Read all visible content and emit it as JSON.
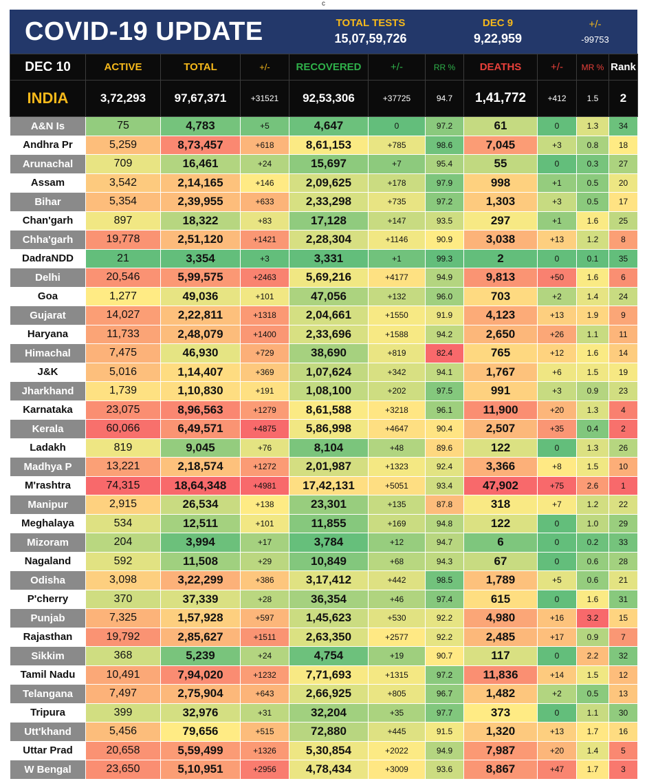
{
  "top_mark": "c",
  "banner": {
    "title": "COVID-19 UPDATE",
    "total_tests_label": "TOTAL TESTS",
    "total_tests_value": "15,07,59,726",
    "date_label": "DEC 9",
    "date_value": "9,22,959",
    "change_label": "+/-",
    "change_value": "-99753"
  },
  "header": {
    "date": "DEC 10",
    "active": "ACTIVE",
    "total": "TOTAL",
    "total_change": "+/-",
    "recovered": "RECOVERED",
    "recovered_change": "+/-",
    "rr": "RR %",
    "deaths": "DEATHS",
    "deaths_change": "+/-",
    "mr": "MR %",
    "rank": "Rank"
  },
  "india": {
    "name": "INDIA",
    "active": "3,72,293",
    "total": "97,67,371",
    "total_change": "+31521",
    "recovered": "92,53,306",
    "recovered_change": "+37725",
    "rr": "94.7",
    "deaths": "1,41,772",
    "deaths_change": "+412",
    "mr": "1.5",
    "rank": "2"
  },
  "colors": {
    "banner_bg": "#23386a",
    "accent_yellow": "#f6b91b",
    "recovered_green": "#2fb14a",
    "deaths_red": "#e8403a",
    "header_bg": "#0b0b0b",
    "state_grey": "#8a8a8a"
  },
  "states": [
    {
      "name": "A&N Is",
      "active": "75",
      "total": "4,783",
      "total_change": "+5",
      "recovered": "4,647",
      "recovered_change": "0",
      "rr": "97.2",
      "deaths": "61",
      "deaths_change": "0",
      "mr": "1.3",
      "rank": "34"
    },
    {
      "name": "Andhra Pr",
      "active": "5,259",
      "total": "8,73,457",
      "total_change": "+618",
      "recovered": "8,61,153",
      "recovered_change": "+785",
      "rr": "98.6",
      "deaths": "7,045",
      "deaths_change": "+3",
      "mr": "0.8",
      "rank": "18"
    },
    {
      "name": "Arunachal",
      "active": "709",
      "total": "16,461",
      "total_change": "+24",
      "recovered": "15,697",
      "recovered_change": "+7",
      "rr": "95.4",
      "deaths": "55",
      "deaths_change": "0",
      "mr": "0.3",
      "rank": "27"
    },
    {
      "name": "Assam",
      "active": "3,542",
      "total": "2,14,165",
      "total_change": "+146",
      "recovered": "2,09,625",
      "recovered_change": "+178",
      "rr": "97.9",
      "deaths": "998",
      "deaths_change": "+1",
      "mr": "0.5",
      "rank": "20"
    },
    {
      "name": "Bihar",
      "active": "5,354",
      "total": "2,39,955",
      "total_change": "+633",
      "recovered": "2,33,298",
      "recovered_change": "+735",
      "rr": "97.2",
      "deaths": "1,303",
      "deaths_change": "+3",
      "mr": "0.5",
      "rank": "17"
    },
    {
      "name": "Chan'garh",
      "active": "897",
      "total": "18,322",
      "total_change": "+83",
      "recovered": "17,128",
      "recovered_change": "+147",
      "rr": "93.5",
      "deaths": "297",
      "deaths_change": "+1",
      "mr": "1.6",
      "rank": "25"
    },
    {
      "name": "Chha'garh",
      "active": "19,778",
      "total": "2,51,120",
      "total_change": "+1421",
      "recovered": "2,28,304",
      "recovered_change": "+1146",
      "rr": "90.9",
      "deaths": "3,038",
      "deaths_change": "+13",
      "mr": "1.2",
      "rank": "8"
    },
    {
      "name": "DadraNDD",
      "active": "21",
      "total": "3,354",
      "total_change": "+3",
      "recovered": "3,331",
      "recovered_change": "+1",
      "rr": "99.3",
      "deaths": "2",
      "deaths_change": "0",
      "mr": "0.1",
      "rank": "35"
    },
    {
      "name": "Delhi",
      "active": "20,546",
      "total": "5,99,575",
      "total_change": "+2463",
      "recovered": "5,69,216",
      "recovered_change": "+4177",
      "rr": "94.9",
      "deaths": "9,813",
      "deaths_change": "+50",
      "mr": "1.6",
      "rank": "6"
    },
    {
      "name": "Goa",
      "active": "1,277",
      "total": "49,036",
      "total_change": "+101",
      "recovered": "47,056",
      "recovered_change": "+132",
      "rr": "96.0",
      "deaths": "703",
      "deaths_change": "+2",
      "mr": "1.4",
      "rank": "24"
    },
    {
      "name": "Gujarat",
      "active": "14,027",
      "total": "2,22,811",
      "total_change": "+1318",
      "recovered": "2,04,661",
      "recovered_change": "+1550",
      "rr": "91.9",
      "deaths": "4,123",
      "deaths_change": "+13",
      "mr": "1.9",
      "rank": "9"
    },
    {
      "name": "Haryana",
      "active": "11,733",
      "total": "2,48,079",
      "total_change": "+1400",
      "recovered": "2,33,696",
      "recovered_change": "+1588",
      "rr": "94.2",
      "deaths": "2,650",
      "deaths_change": "+26",
      "mr": "1.1",
      "rank": "11"
    },
    {
      "name": "Himachal",
      "active": "7,475",
      "total": "46,930",
      "total_change": "+729",
      "recovered": "38,690",
      "recovered_change": "+819",
      "rr": "82.4",
      "deaths": "765",
      "deaths_change": "+12",
      "mr": "1.6",
      "rank": "14"
    },
    {
      "name": "J&K",
      "active": "5,016",
      "total": "1,14,407",
      "total_change": "+369",
      "recovered": "1,07,624",
      "recovered_change": "+342",
      "rr": "94.1",
      "deaths": "1,767",
      "deaths_change": "+6",
      "mr": "1.5",
      "rank": "19"
    },
    {
      "name": "Jharkhand",
      "active": "1,739",
      "total": "1,10,830",
      "total_change": "+191",
      "recovered": "1,08,100",
      "recovered_change": "+202",
      "rr": "97.5",
      "deaths": "991",
      "deaths_change": "+3",
      "mr": "0.9",
      "rank": "23"
    },
    {
      "name": "Karnataka",
      "active": "23,075",
      "total": "8,96,563",
      "total_change": "+1279",
      "recovered": "8,61,588",
      "recovered_change": "+3218",
      "rr": "96.1",
      "deaths": "11,900",
      "deaths_change": "+20",
      "mr": "1.3",
      "rank": "4"
    },
    {
      "name": "Kerala",
      "active": "60,066",
      "total": "6,49,571",
      "total_change": "+4875",
      "recovered": "5,86,998",
      "recovered_change": "+4647",
      "rr": "90.4",
      "deaths": "2,507",
      "deaths_change": "+35",
      "mr": "0.4",
      "rank": "2"
    },
    {
      "name": "Ladakh",
      "active": "819",
      "total": "9,045",
      "total_change": "+76",
      "recovered": "8,104",
      "recovered_change": "+48",
      "rr": "89.6",
      "deaths": "122",
      "deaths_change": "0",
      "mr": "1.3",
      "rank": "26"
    },
    {
      "name": "Madhya P",
      "active": "13,221",
      "total": "2,18,574",
      "total_change": "+1272",
      "recovered": "2,01,987",
      "recovered_change": "+1323",
      "rr": "92.4",
      "deaths": "3,366",
      "deaths_change": "+8",
      "mr": "1.5",
      "rank": "10"
    },
    {
      "name": "M'rashtra",
      "active": "74,315",
      "total": "18,64,348",
      "total_change": "+4981",
      "recovered": "17,42,131",
      "recovered_change": "+5051",
      "rr": "93.4",
      "deaths": "47,902",
      "deaths_change": "+75",
      "mr": "2.6",
      "rank": "1"
    },
    {
      "name": "Manipur",
      "active": "2,915",
      "total": "26,534",
      "total_change": "+138",
      "recovered": "23,301",
      "recovered_change": "+135",
      "rr": "87.8",
      "deaths": "318",
      "deaths_change": "+7",
      "mr": "1.2",
      "rank": "22"
    },
    {
      "name": "Meghalaya",
      "active": "534",
      "total": "12,511",
      "total_change": "+101",
      "recovered": "11,855",
      "recovered_change": "+169",
      "rr": "94.8",
      "deaths": "122",
      "deaths_change": "0",
      "mr": "1.0",
      "rank": "29"
    },
    {
      "name": "Mizoram",
      "active": "204",
      "total": "3,994",
      "total_change": "+17",
      "recovered": "3,784",
      "recovered_change": "+12",
      "rr": "94.7",
      "deaths": "6",
      "deaths_change": "0",
      "mr": "0.2",
      "rank": "33"
    },
    {
      "name": "Nagaland",
      "active": "592",
      "total": "11,508",
      "total_change": "+29",
      "recovered": "10,849",
      "recovered_change": "+68",
      "rr": "94.3",
      "deaths": "67",
      "deaths_change": "0",
      "mr": "0.6",
      "rank": "28"
    },
    {
      "name": "Odisha",
      "active": "3,098",
      "total": "3,22,299",
      "total_change": "+386",
      "recovered": "3,17,412",
      "recovered_change": "+442",
      "rr": "98.5",
      "deaths": "1,789",
      "deaths_change": "+5",
      "mr": "0.6",
      "rank": "21"
    },
    {
      "name": "P'cherry",
      "active": "370",
      "total": "37,339",
      "total_change": "+28",
      "recovered": "36,354",
      "recovered_change": "+46",
      "rr": "97.4",
      "deaths": "615",
      "deaths_change": "0",
      "mr": "1.6",
      "rank": "31"
    },
    {
      "name": "Punjab",
      "active": "7,325",
      "total": "1,57,928",
      "total_change": "+597",
      "recovered": "1,45,623",
      "recovered_change": "+530",
      "rr": "92.2",
      "deaths": "4,980",
      "deaths_change": "+16",
      "mr": "3.2",
      "rank": "15"
    },
    {
      "name": "Rajasthan",
      "active": "19,792",
      "total": "2,85,627",
      "total_change": "+1511",
      "recovered": "2,63,350",
      "recovered_change": "+2577",
      "rr": "92.2",
      "deaths": "2,485",
      "deaths_change": "+17",
      "mr": "0.9",
      "rank": "7"
    },
    {
      "name": "Sikkim",
      "active": "368",
      "total": "5,239",
      "total_change": "+24",
      "recovered": "4,754",
      "recovered_change": "+19",
      "rr": "90.7",
      "deaths": "117",
      "deaths_change": "0",
      "mr": "2.2",
      "rank": "32"
    },
    {
      "name": "Tamil Nadu",
      "active": "10,491",
      "total": "7,94,020",
      "total_change": "+1232",
      "recovered": "7,71,693",
      "recovered_change": "+1315",
      "rr": "97.2",
      "deaths": "11,836",
      "deaths_change": "+14",
      "mr": "1.5",
      "rank": "12"
    },
    {
      "name": "Telangana",
      "active": "7,497",
      "total": "2,75,904",
      "total_change": "+643",
      "recovered": "2,66,925",
      "recovered_change": "+805",
      "rr": "96.7",
      "deaths": "1,482",
      "deaths_change": "+2",
      "mr": "0.5",
      "rank": "13"
    },
    {
      "name": "Tripura",
      "active": "399",
      "total": "32,976",
      "total_change": "+31",
      "recovered": "32,204",
      "recovered_change": "+35",
      "rr": "97.7",
      "deaths": "373",
      "deaths_change": "0",
      "mr": "1.1",
      "rank": "30"
    },
    {
      "name": "Utt'khand",
      "active": "5,456",
      "total": "79,656",
      "total_change": "+515",
      "recovered": "72,880",
      "recovered_change": "+445",
      "rr": "91.5",
      "deaths": "1,320",
      "deaths_change": "+13",
      "mr": "1.7",
      "rank": "16"
    },
    {
      "name": "Uttar Prad",
      "active": "20,658",
      "total": "5,59,499",
      "total_change": "+1326",
      "recovered": "5,30,854",
      "recovered_change": "+2022",
      "rr": "94.9",
      "deaths": "7,987",
      "deaths_change": "+20",
      "mr": "1.4",
      "rank": "5"
    },
    {
      "name": "W Bengal",
      "active": "23,650",
      "total": "5,10,951",
      "total_change": "+2956",
      "recovered": "4,78,434",
      "recovered_change": "+3009",
      "rr": "93.6",
      "deaths": "8,867",
      "deaths_change": "+47",
      "mr": "1.7",
      "rank": "3"
    }
  ]
}
